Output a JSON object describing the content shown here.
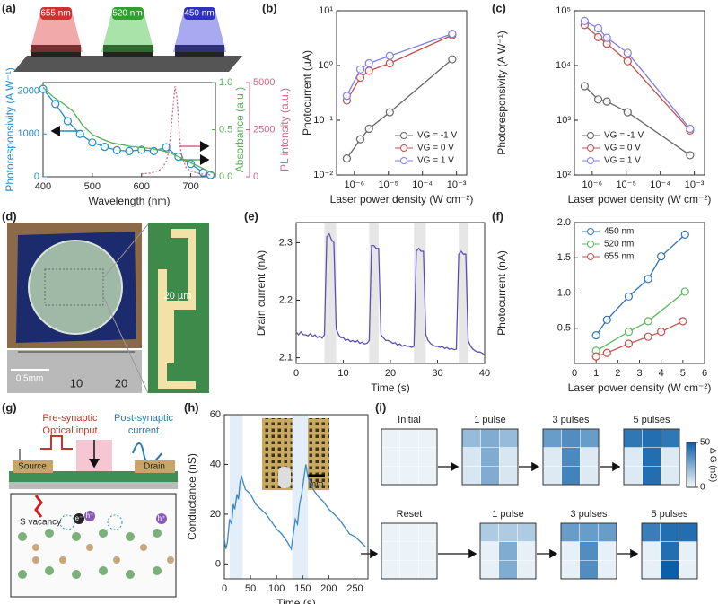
{
  "panel_labels": [
    "(a)",
    "(b)",
    "(c)",
    "(d)",
    "(e)",
    "(f)",
    "(g)",
    "(h)",
    "(i)"
  ],
  "schematic_a": {
    "wavelength_tags": [
      "655 nm",
      "520 nm",
      "450 nm"
    ]
  },
  "image_d": {
    "scale_bar": "20 µm",
    "ruler_unit": "0.5mm",
    "ruler_ticks": [
      "10",
      "20"
    ]
  },
  "diagram_g": {
    "input": "Pre-synaptic\nOptical input",
    "input_lines": [
      "Pre-synaptic",
      "Optical input"
    ],
    "output_lines": [
      "Post-synaptic",
      "current"
    ],
    "source": "Source",
    "drain": "Drain",
    "vacancy": "S vacancy",
    "electron": "e⁻",
    "hole": "h⁺"
  },
  "inset_h": {
    "scale_bar": "1 mm"
  },
  "chart_data": [
    {
      "type": "line",
      "xlabel": "Wavelength (nm)",
      "ylabel": "Photoresponsivity (A W⁻¹)",
      "y2label": "Absorbance (a.u.)",
      "y3label": "PL intensity (a.u.)",
      "xlim": [
        400,
        750
      ],
      "xticks": [
        400,
        500,
        600,
        700
      ],
      "ylim": [
        0,
        2200
      ],
      "yticks": [
        0,
        1000,
        2000
      ],
      "y2lim": [
        0,
        1.0
      ],
      "y2ticks": [
        {
          "value": 0,
          "label": "0.0"
        },
        0.5,
        {
          "value": 1.0,
          "label": "1.0"
        }
      ],
      "y3lim": [
        0,
        5000
      ],
      "y3ticks": [
        0,
        2500,
        5000
      ],
      "series": [
        {
          "color": "#1f8dc6",
          "marker": "circle",
          "x": [
            400,
            425,
            450,
            475,
            500,
            525,
            550,
            575,
            600,
            625,
            650,
            675,
            700,
            725,
            740
          ],
          "values": [
            2050,
            1700,
            1300,
            1000,
            800,
            700,
            620,
            600,
            630,
            600,
            690,
            470,
            300,
            100,
            40
          ]
        },
        {
          "color": "#5aae5a",
          "axis": "y2",
          "x": [
            400,
            420,
            440,
            460,
            480,
            500,
            520,
            540,
            560,
            580,
            600,
            620,
            640,
            660,
            680,
            700,
            720,
            740,
            750
          ],
          "values": [
            0.95,
            0.85,
            0.78,
            0.7,
            0.55,
            0.45,
            0.4,
            0.36,
            0.34,
            0.32,
            0.31,
            0.3,
            0.28,
            0.25,
            0.2,
            0.15,
            0.1,
            0.05,
            0.03
          ]
        },
        {
          "color": "#c86a86",
          "axis": "y3",
          "style": "dotted",
          "x": [
            600,
            620,
            640,
            650,
            655,
            660,
            665,
            668,
            672,
            676,
            680,
            690,
            700,
            720,
            740
          ],
          "values": [
            150,
            200,
            400,
            800,
            1300,
            2500,
            4000,
            4800,
            4200,
            2600,
            1300,
            500,
            300,
            150,
            100
          ]
        }
      ]
    },
    {
      "type": "line",
      "xlabel": "Laser power density (W cm⁻²)",
      "ylabel": "Photocurrent (µA)",
      "log_x": true,
      "log_y": true,
      "xlim": [
        3e-07,
        0.002
      ],
      "xticks": [
        {
          "value": 1e-06,
          "label": "10⁻⁶"
        },
        {
          "value": 1e-05,
          "label": "10⁻⁵"
        },
        {
          "value": 0.0001,
          "label": "10⁻⁴"
        },
        {
          "value": 0.001,
          "label": "10⁻³"
        }
      ],
      "ylim": [
        0.01,
        10
      ],
      "yticks": [
        {
          "value": 0.01,
          "label": "10⁻²"
        },
        {
          "value": 0.1,
          "label": "10⁻¹"
        },
        {
          "value": 1,
          "label": "10⁰"
        },
        {
          "value": 10,
          "label": "10¹"
        }
      ],
      "x": [
        6e-07,
        1.5e-06,
        2.7e-06,
        1.1e-05,
        0.00075
      ],
      "legend": "lower right",
      "series": [
        {
          "name": "VG = -1 V",
          "color": "#666666",
          "marker": "circle",
          "values": [
            0.02,
            0.045,
            0.07,
            0.14,
            1.3
          ]
        },
        {
          "name": "VG = 0 V",
          "color": "#c0504d",
          "marker": "circle",
          "values": [
            0.23,
            0.6,
            0.8,
            1.1,
            3.6
          ]
        },
        {
          "name": "VG = 1 V",
          "color": "#8080e0",
          "marker": "circle",
          "values": [
            0.28,
            0.85,
            1.1,
            1.5,
            3.8
          ]
        }
      ]
    },
    {
      "type": "line",
      "xlabel": "Laser power density (W cm⁻²)",
      "ylabel": "Photoresponsivity (A W⁻¹)",
      "log_x": true,
      "log_y": true,
      "xlim": [
        3e-07,
        0.002
      ],
      "xticks": [
        {
          "value": 1e-06,
          "label": "10⁻⁶"
        },
        {
          "value": 1e-05,
          "label": "10⁻⁵"
        },
        {
          "value": 0.0001,
          "label": "10⁻⁴"
        },
        {
          "value": 0.001,
          "label": "10⁻³"
        }
      ],
      "ylim": [
        100,
        100000
      ],
      "yticks": [
        {
          "value": 100,
          "label": "10²"
        },
        {
          "value": 1000,
          "label": "10³"
        },
        {
          "value": 10000,
          "label": "10⁴"
        },
        {
          "value": 100000,
          "label": "10⁵"
        }
      ],
      "x": [
        6e-07,
        1.5e-06,
        2.7e-06,
        1.1e-05,
        0.00075
      ],
      "legend": "lower left",
      "series": [
        {
          "name": "VG = -1 V",
          "color": "#666666",
          "marker": "circle",
          "values": [
            4200,
            2400,
            2200,
            1400,
            230
          ]
        },
        {
          "name": "VG = 0 V",
          "color": "#c0504d",
          "marker": "circle",
          "values": [
            55000,
            33000,
            25000,
            12000,
            650
          ]
        },
        {
          "name": "VG = 1 V",
          "color": "#8080e0",
          "marker": "circle",
          "values": [
            65000,
            48000,
            32000,
            17000,
            700
          ]
        }
      ]
    },
    {
      "type": "line",
      "xlabel": "Time (s)",
      "ylabel": "Drain current (nA)",
      "xlim": [
        0,
        40
      ],
      "xticks": [
        0,
        10,
        20,
        30,
        40
      ],
      "ylim": [
        2.09,
        2.335
      ],
      "yticks": [
        2.1,
        2.2,
        2.3
      ],
      "shaded": [
        [
          6,
          8.5
        ],
        [
          15.5,
          17.5
        ],
        [
          25,
          27.5
        ],
        [
          34.5,
          36.5
        ]
      ],
      "shade_color": "#e6e6e6",
      "x": [
        0,
        0.5,
        1,
        1.5,
        2,
        2.5,
        3,
        3.5,
        4,
        4.5,
        5,
        5.5,
        6,
        6.5,
        7,
        7.5,
        8,
        8.5,
        9,
        9.5,
        10,
        10.5,
        11,
        11.5,
        12,
        12.5,
        13,
        13.5,
        14,
        14.5,
        15,
        15.5,
        16,
        16.5,
        17,
        17.5,
        18,
        18.5,
        19,
        19.5,
        20,
        20.5,
        21,
        21.5,
        22,
        22.5,
        23,
        23.5,
        24,
        24.5,
        25,
        25.5,
        26,
        26.5,
        27,
        27.5,
        28,
        28.5,
        29,
        29.5,
        30,
        30.5,
        31,
        31.5,
        32,
        32.5,
        33,
        33.5,
        34,
        34.5,
        35,
        35.5,
        36,
        36.5,
        37,
        37.5,
        38,
        38.5,
        39,
        39.5,
        40
      ],
      "series": [
        {
          "color": "#5b4fb5",
          "values": [
            2.145,
            2.14,
            2.145,
            2.14,
            2.14,
            2.138,
            2.142,
            2.137,
            2.14,
            2.135,
            2.138,
            2.134,
            2.14,
            2.31,
            2.315,
            2.305,
            2.3,
            2.15,
            2.14,
            2.135,
            2.135,
            2.13,
            2.132,
            2.128,
            2.13,
            2.127,
            2.13,
            2.125,
            2.127,
            2.124,
            2.125,
            2.13,
            2.295,
            2.295,
            2.29,
            2.29,
            2.14,
            2.135,
            2.13,
            2.13,
            2.128,
            2.125,
            2.126,
            2.122,
            2.124,
            2.12,
            2.122,
            2.12,
            2.12,
            2.118,
            2.12,
            2.285,
            2.29,
            2.285,
            2.285,
            2.14,
            2.13,
            2.125,
            2.122,
            2.12,
            2.12,
            2.118,
            2.12,
            2.116,
            2.118,
            2.115,
            2.116,
            2.114,
            2.115,
            2.28,
            2.285,
            2.28,
            2.28,
            2.13,
            2.12,
            2.115,
            2.112,
            2.11,
            2.11,
            2.108,
            2.105
          ]
        }
      ]
    },
    {
      "type": "line",
      "xlabel": "Laser power density (W cm⁻²)",
      "ylabel": "Photocurrent (nA)",
      "xlim": [
        0,
        6
      ],
      "xticks": [
        0,
        1,
        2,
        3,
        4,
        5,
        6
      ],
      "ylim": [
        0,
        2.0
      ],
      "yticks": [
        0.5,
        {
          "value": 1.0,
          "label": "1.0"
        },
        1.5,
        {
          "value": 2.0,
          "label": "2.0"
        }
      ],
      "legend": "upper left",
      "series": [
        {
          "name": "450 nm",
          "color": "#2e75b6",
          "marker": "circle",
          "x": [
            1,
            1.5,
            2.5,
            3.4,
            4,
            5.1
          ],
          "values": [
            0.4,
            0.62,
            0.95,
            1.2,
            1.52,
            1.83
          ]
        },
        {
          "name": "520 nm",
          "color": "#5cb85c",
          "marker": "circle",
          "x": [
            1,
            2.5,
            3.4,
            5.1
          ],
          "values": [
            0.18,
            0.45,
            0.6,
            1.02
          ]
        },
        {
          "name": "655 nm",
          "color": "#c0504d",
          "marker": "circle",
          "x": [
            1,
            1.5,
            2.5,
            3.4,
            4,
            5
          ],
          "values": [
            0.1,
            0.15,
            0.28,
            0.38,
            0.45,
            0.6
          ]
        }
      ]
    },
    {
      "type": "line",
      "xlabel": "Time (s)",
      "ylabel": "Conductance (nS)",
      "xlim": [
        0,
        275
      ],
      "xticks": [
        0,
        50,
        100,
        150,
        200,
        250
      ],
      "ylim": [
        -6,
        60
      ],
      "yticks": [
        0,
        20,
        40,
        60
      ],
      "shaded": [
        [
          10,
          35
        ],
        [
          130,
          160
        ]
      ],
      "shade_color": "#e3eef8",
      "x": [
        0,
        3,
        6,
        10,
        14,
        17,
        20,
        24,
        27,
        30,
        33,
        40,
        50,
        60,
        70,
        80,
        90,
        100,
        110,
        120,
        128,
        132,
        136,
        140,
        144,
        148,
        152,
        156,
        160,
        170,
        180,
        190,
        200,
        210,
        220,
        230,
        240,
        250,
        260,
        270
      ],
      "series": [
        {
          "color": "#3a86c8",
          "values": [
            10,
            6,
            9,
            18,
            16,
            24,
            22,
            28,
            26,
            33,
            35,
            30,
            28,
            24,
            22,
            20,
            17,
            14,
            12,
            9,
            6,
            12,
            18,
            16,
            24,
            28,
            34,
            40,
            35,
            30,
            27,
            25,
            22,
            20,
            18,
            15,
            12,
            11,
            9,
            7
          ]
        }
      ]
    },
    {
      "type": "heatmap",
      "clim": [
        0,
        50
      ],
      "cticks": [
        0,
        50
      ],
      "clabel": "Δ G (nS)",
      "panels": [
        {
          "title": "Initial",
          "values": [
            [
              2,
              2,
              2
            ],
            [
              2,
              2,
              2
            ],
            [
              2,
              2,
              2
            ]
          ]
        },
        {
          "title": "1 pulse",
          "values": [
            [
              20,
              25,
              20
            ],
            [
              6,
              25,
              6
            ],
            [
              6,
              25,
              6
            ]
          ]
        },
        {
          "title": "3 pulses",
          "values": [
            [
              30,
              35,
              30
            ],
            [
              5,
              36,
              5
            ],
            [
              5,
              38,
              5
            ]
          ]
        },
        {
          "title": "5 pulses",
          "values": [
            [
              42,
              45,
              42
            ],
            [
              5,
              45,
              5
            ],
            [
              5,
              45,
              5
            ]
          ]
        },
        {
          "title": "Reset",
          "values": [
            [
              2,
              2,
              2
            ],
            [
              2,
              2,
              2
            ],
            [
              2,
              2,
              2
            ]
          ]
        },
        {
          "title": "1 pulse",
          "values": [
            [
              15,
              15,
              15
            ],
            [
              3,
              25,
              3
            ],
            [
              3,
              25,
              3
            ]
          ]
        },
        {
          "title": "3 pulses",
          "values": [
            [
              30,
              30,
              30
            ],
            [
              3,
              35,
              3
            ],
            [
              3,
              35,
              3
            ]
          ]
        },
        {
          "title": "5 pulses",
          "values": [
            [
              40,
              45,
              45
            ],
            [
              3,
              45,
              3
            ],
            [
              3,
              50,
              3
            ]
          ]
        }
      ]
    }
  ]
}
